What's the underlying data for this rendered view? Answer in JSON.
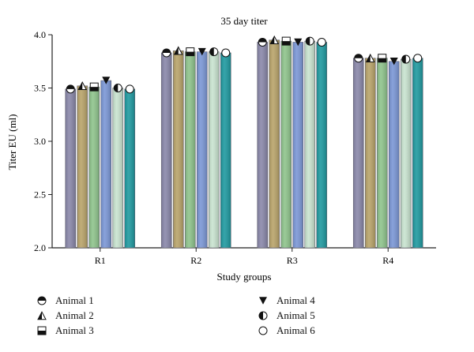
{
  "chart_data": {
    "type": "bar",
    "title": "35 day titer",
    "xlabel": "Study groups",
    "ylabel": "Titer EU (ml)",
    "ylim": [
      2.0,
      4.0
    ],
    "yticks": [
      "2.0",
      "2.5",
      "3.0",
      "3.5",
      "4.0"
    ],
    "categories": [
      "R1",
      "R2",
      "R3",
      "R4"
    ],
    "grid": false,
    "legend_position": "bottom",
    "series": [
      {
        "name": "Animal 1",
        "marker": "half-top-circle",
        "color": "#8a88aa",
        "values": [
          3.49,
          3.83,
          3.93,
          3.78
        ]
      },
      {
        "name": "Animal 2",
        "marker": "half-triangle",
        "color": "#b9a46a",
        "values": [
          3.52,
          3.85,
          3.95,
          3.78
        ]
      },
      {
        "name": "Animal 3",
        "marker": "half-square",
        "color": "#8fc48c",
        "values": [
          3.51,
          3.84,
          3.94,
          3.78
        ]
      },
      {
        "name": "Animal 4",
        "marker": "triangle-down",
        "color": "#7b97d6",
        "values": [
          3.57,
          3.84,
          3.93,
          3.75
        ]
      },
      {
        "name": "Animal 5",
        "marker": "half-left-circle",
        "color": "#c9e4d0",
        "values": [
          3.5,
          3.84,
          3.94,
          3.77
        ]
      },
      {
        "name": "Animal 6",
        "marker": "open-circle",
        "color": "#1f9aa0",
        "values": [
          3.49,
          3.83,
          3.93,
          3.78
        ]
      }
    ]
  }
}
